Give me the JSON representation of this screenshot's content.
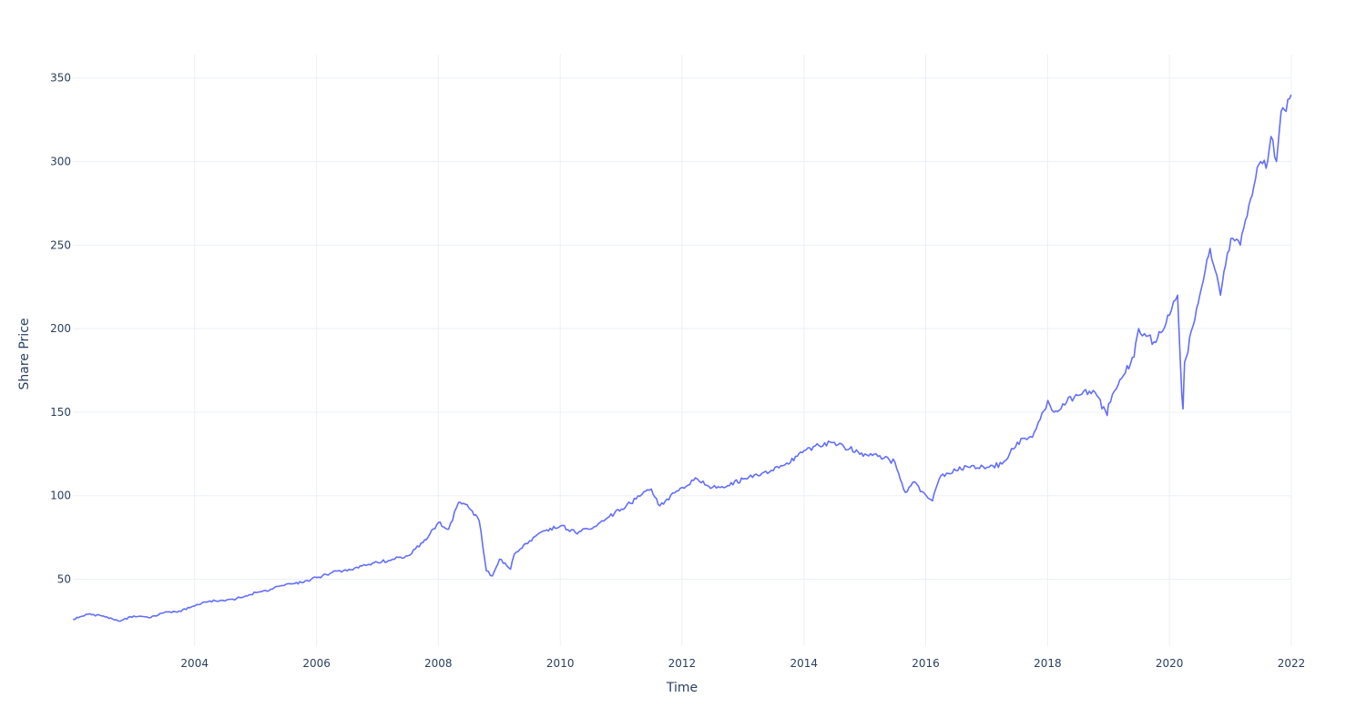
{
  "chart_data": {
    "type": "line",
    "title": "",
    "xlabel": "Time",
    "ylabel": "Share Price",
    "x_tick_labels": [
      "2004",
      "2006",
      "2008",
      "2010",
      "2012",
      "2014",
      "2016",
      "2018",
      "2020",
      "2022"
    ],
    "y_tick_labels": [
      "50",
      "100",
      "150",
      "200",
      "250",
      "300",
      "350"
    ],
    "xlim": [
      "2002-01-01",
      "2022-01-01"
    ],
    "ylim": [
      10,
      364
    ],
    "grid": true,
    "legend": "none",
    "series": [
      {
        "color": "#636efa",
        "x": [
          "2002-01-02",
          "2002-04-01",
          "2002-07-01",
          "2002-10-01",
          "2003-01-02",
          "2003-04-01",
          "2003-07-01",
          "2003-10-01",
          "2004-01-02",
          "2004-04-01",
          "2004-07-01",
          "2004-10-01",
          "2005-01-03",
          "2005-04-01",
          "2005-07-01",
          "2005-10-03",
          "2006-01-03",
          "2006-04-03",
          "2006-07-03",
          "2006-10-02",
          "2007-01-03",
          "2007-04-02",
          "2007-07-02",
          "2007-10-01",
          "2008-01-02",
          "2008-03-03",
          "2008-05-01",
          "2008-07-01",
          "2008-09-02",
          "2008-10-15",
          "2008-11-20",
          "2009-01-02",
          "2009-03-09",
          "2009-04-01",
          "2009-07-01",
          "2009-10-01",
          "2010-01-04",
          "2010-04-01",
          "2010-07-01",
          "2010-10-01",
          "2011-01-03",
          "2011-04-01",
          "2011-07-01",
          "2011-08-22",
          "2011-10-03",
          "2012-01-03",
          "2012-04-02",
          "2012-07-02",
          "2012-10-01",
          "2013-01-02",
          "2013-04-01",
          "2013-07-01",
          "2013-10-01",
          "2014-01-02",
          "2014-04-01",
          "2014-07-01",
          "2014-10-01",
          "2015-01-02",
          "2015-04-01",
          "2015-07-01",
          "2015-09-01",
          "2015-10-15",
          "2016-01-04",
          "2016-02-11",
          "2016-04-01",
          "2016-07-01",
          "2016-10-03",
          "2017-01-03",
          "2017-04-03",
          "2017-07-03",
          "2017-10-02",
          "2018-01-02",
          "2018-02-08",
          "2018-04-02",
          "2018-07-02",
          "2018-10-01",
          "2018-12-24",
          "2019-01-02",
          "2019-04-01",
          "2019-06-03",
          "2019-07-01",
          "2019-10-01",
          "2020-01-02",
          "2020-02-19",
          "2020-03-16",
          "2020-03-23",
          "2020-04-01",
          "2020-06-01",
          "2020-08-03",
          "2020-09-01",
          "2020-10-01",
          "2020-11-02",
          "2021-01-04",
          "2021-03-01",
          "2021-04-01",
          "2021-06-01",
          "2021-07-01",
          "2021-08-03",
          "2021-09-01",
          "2021-10-04",
          "2021-11-01",
          "2021-12-01",
          "2021-12-31"
        ],
        "values": [
          26,
          29,
          28,
          25,
          28,
          27,
          30,
          31,
          34,
          37,
          37,
          39,
          42,
          44,
          47,
          48,
          51,
          54,
          55,
          58,
          60,
          62,
          64,
          72,
          84,
          80,
          96,
          93,
          85,
          55,
          52,
          62,
          56,
          65,
          73,
          79,
          82,
          78,
          80,
          86,
          92,
          98,
          104,
          94,
          98,
          105,
          110,
          105,
          106,
          110,
          112,
          115,
          119,
          127,
          130,
          132,
          128,
          125,
          124,
          120,
          102,
          108,
          100,
          97,
          112,
          115,
          118,
          117,
          119,
          132,
          135,
          157,
          150,
          155,
          160,
          163,
          148,
          155,
          172,
          183,
          200,
          192,
          208,
          220,
          160,
          152,
          180,
          205,
          235,
          248,
          235,
          220,
          254,
          250,
          265,
          290,
          300,
          296,
          315,
          300,
          330,
          330,
          340
        ]
      }
    ]
  }
}
